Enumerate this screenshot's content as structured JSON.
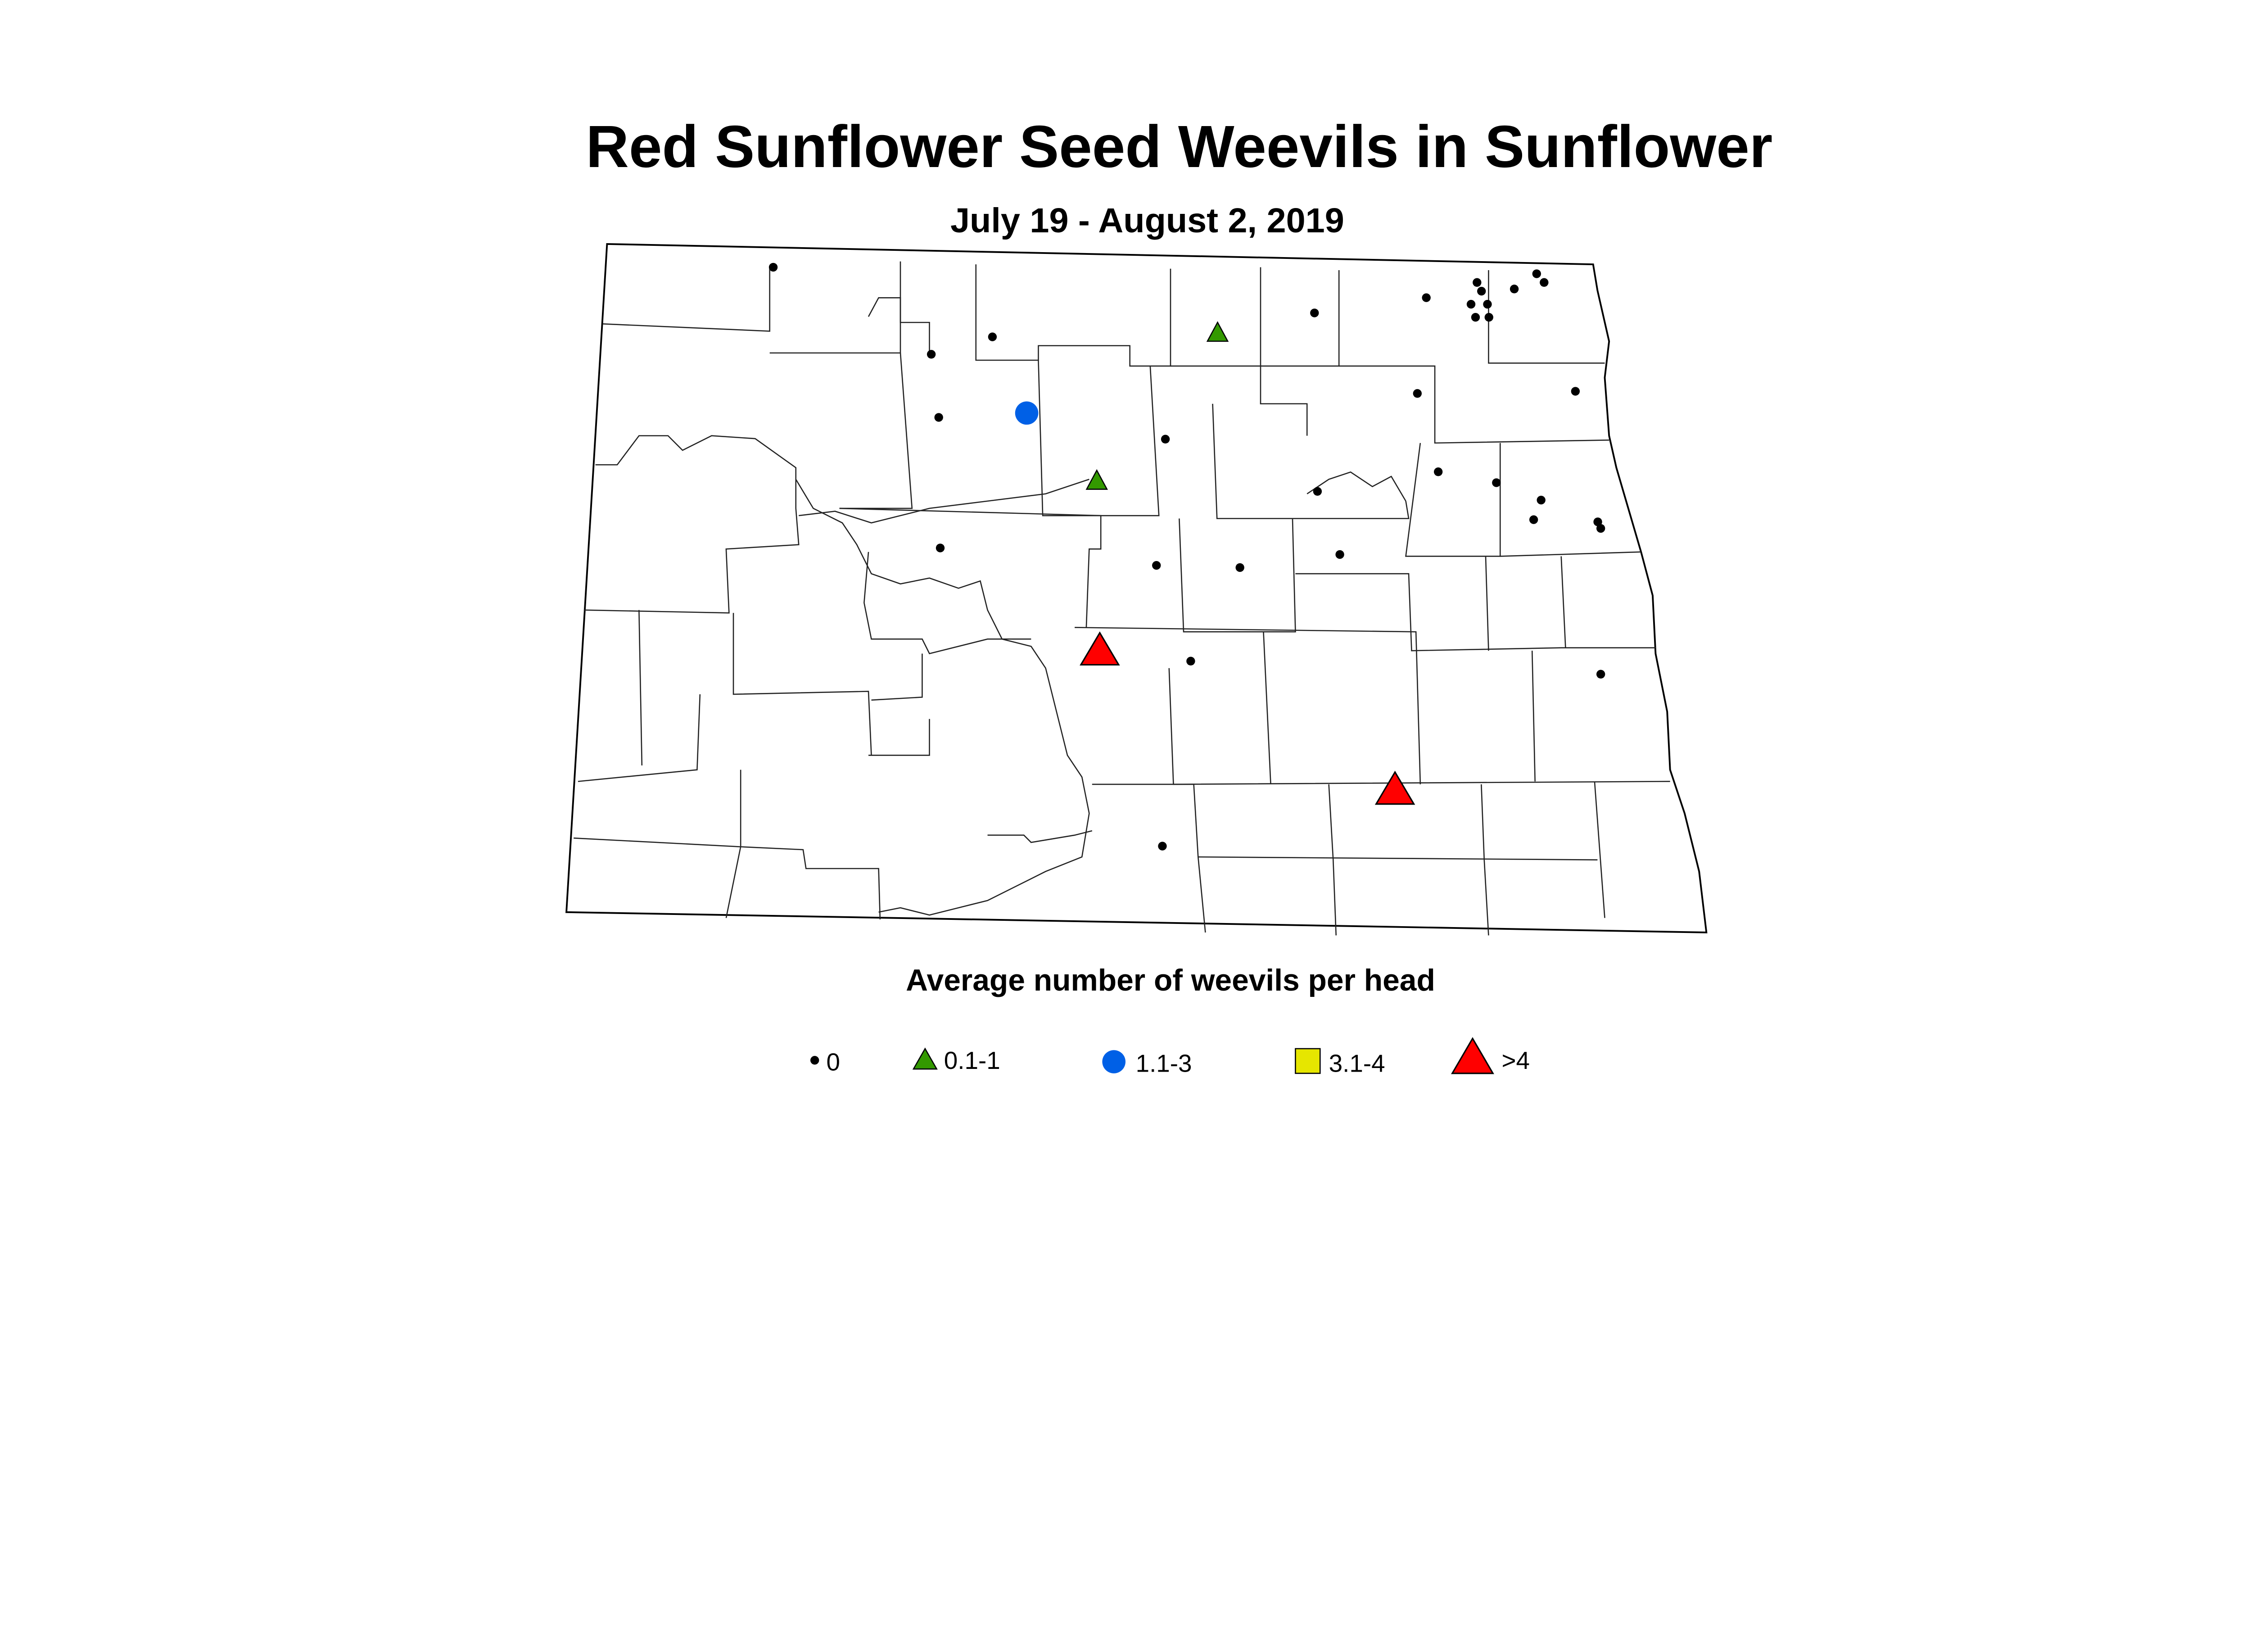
{
  "title": "Red Sunflower Seed Weevils in Sunflower",
  "subtitle": "July 19 - August 2, 2019",
  "legend": {
    "title": "Average number of weevils per head",
    "items": [
      {
        "label": "0",
        "shape": "dot",
        "color": "#000000"
      },
      {
        "label": "0.1-1",
        "shape": "triangle-small",
        "color": "#339900"
      },
      {
        "label": "1.1-3",
        "shape": "circle",
        "color": "#0060e6"
      },
      {
        "label": "3.1-4",
        "shape": "square",
        "color": "#e6e600"
      },
      {
        "label": ">4",
        "shape": "triangle-large",
        "color": "#ff0000"
      }
    ]
  },
  "map": {
    "region": "North Dakota counties",
    "sites": [
      {
        "lon": -102.76,
        "lat": 48.94,
        "class": "0"
      },
      {
        "lon": -99.13,
        "lat": 48.73,
        "class": "0"
      },
      {
        "lon": -98.38,
        "lat": 48.8,
        "class": "0"
      },
      {
        "lon": -98.04,
        "lat": 48.87,
        "class": "0"
      },
      {
        "lon": -98.01,
        "lat": 48.83,
        "class": "0"
      },
      {
        "lon": -98.08,
        "lat": 48.77,
        "class": "0"
      },
      {
        "lon": -97.97,
        "lat": 48.77,
        "class": "0"
      },
      {
        "lon": -98.05,
        "lat": 48.71,
        "class": "0"
      },
      {
        "lon": -97.96,
        "lat": 48.71,
        "class": "0"
      },
      {
        "lon": -97.79,
        "lat": 48.84,
        "class": "0"
      },
      {
        "lon": -97.64,
        "lat": 48.91,
        "class": "0"
      },
      {
        "lon": -97.59,
        "lat": 48.87,
        "class": "0"
      },
      {
        "lon": -101.7,
        "lat": 48.54,
        "class": "0"
      },
      {
        "lon": -101.29,
        "lat": 48.62,
        "class": "0"
      },
      {
        "lon": -98.44,
        "lat": 48.36,
        "class": "0"
      },
      {
        "lon": -97.38,
        "lat": 48.37,
        "class": "0"
      },
      {
        "lon": -101.65,
        "lat": 48.25,
        "class": "0"
      },
      {
        "lon": -100.13,
        "lat": 48.15,
        "class": "0"
      },
      {
        "lon": -99.11,
        "lat": 47.91,
        "class": "0"
      },
      {
        "lon": -98.3,
        "lat": 48.0,
        "class": "0"
      },
      {
        "lon": -97.91,
        "lat": 47.95,
        "class": "0"
      },
      {
        "lon": -97.61,
        "lat": 47.87,
        "class": "0"
      },
      {
        "lon": -97.66,
        "lat": 47.78,
        "class": "0"
      },
      {
        "lon": -97.23,
        "lat": 47.77,
        "class": "0"
      },
      {
        "lon": -97.21,
        "lat": 47.74,
        "class": "0"
      },
      {
        "lon": -101.64,
        "lat": 47.65,
        "class": "0"
      },
      {
        "lon": -100.19,
        "lat": 47.57,
        "class": "0"
      },
      {
        "lon": -99.63,
        "lat": 47.56,
        "class": "0"
      },
      {
        "lon": -98.96,
        "lat": 47.62,
        "class": "0"
      },
      {
        "lon": -99.96,
        "lat": 47.13,
        "class": "0"
      },
      {
        "lon": -97.21,
        "lat": 47.07,
        "class": "0"
      },
      {
        "lon": -100.15,
        "lat": 46.28,
        "class": "0"
      },
      {
        "lon": -99.78,
        "lat": 48.64,
        "class": "0.1-1"
      },
      {
        "lon": -100.59,
        "lat": 47.96,
        "class": "0.1-1"
      },
      {
        "lon": -101.06,
        "lat": 48.27,
        "class": "1.1-3"
      },
      {
        "lon": -100.57,
        "lat": 47.18,
        "class": ">4"
      },
      {
        "lon": -98.59,
        "lat": 46.54,
        "class": ">4"
      }
    ]
  }
}
